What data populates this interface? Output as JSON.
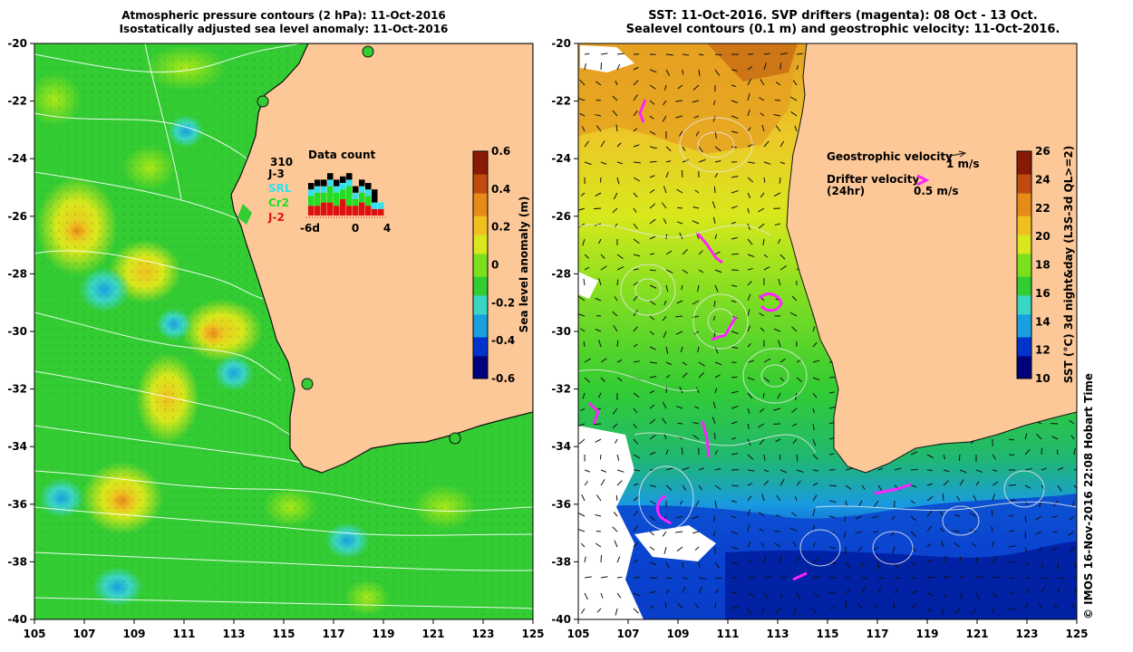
{
  "left_panel": {
    "title_line1": "Atmospheric pressure contours (2 hPa): 11-Oct-2016",
    "title_line2": "Isostatically adjusted sea level anomaly: 11-Oct-2016",
    "colorbar_label": "Sea level anomaly (m)",
    "colorbar_ticks": [
      "0.6",
      "0.4",
      "0.2",
      "0",
      "-0.2",
      "-0.4",
      "-0.6"
    ],
    "colorbar_colors": [
      "#00007a",
      "#0033cc",
      "#1aa0e0",
      "#3ad6c4",
      "#33cc33",
      "#7ae01e",
      "#d8e81c",
      "#f0c020",
      "#e68a1a",
      "#c04a10",
      "#8a1a08"
    ],
    "y_ticks": [
      "-20",
      "-22",
      "-24",
      "-26",
      "-28",
      "-30",
      "-32",
      "-34",
      "-36",
      "-38",
      "-40"
    ],
    "x_ticks": [
      "105",
      "107",
      "109",
      "111",
      "113",
      "115",
      "117",
      "119",
      "121",
      "123",
      "125"
    ],
    "inset": {
      "title": "Data count",
      "count": "310",
      "legend": [
        {
          "label": "J-3",
          "color": "#000000"
        },
        {
          "label": "SRL",
          "color": "#33e0f0"
        },
        {
          "label": "Cr2",
          "color": "#22dd22"
        },
        {
          "label": "J-2",
          "color": "#dd1111"
        }
      ],
      "x_labels": [
        "-6d",
        "0",
        "4"
      ],
      "bars": [
        [
          2,
          2,
          3,
          3
        ],
        [
          2,
          2,
          4,
          3
        ],
        [
          2,
          2,
          3,
          4
        ],
        [
          2,
          2,
          5,
          4
        ],
        [
          2,
          2,
          4,
          3
        ],
        [
          2,
          2,
          3,
          5
        ],
        [
          2,
          2,
          6,
          3
        ],
        [
          2,
          2,
          2,
          3
        ],
        [
          2,
          2,
          3,
          4
        ],
        [
          2,
          2,
          3,
          3
        ],
        [
          4,
          2,
          0,
          2
        ],
        [
          0,
          2,
          0,
          2
        ]
      ]
    }
  },
  "right_panel": {
    "title_line1": "SST: 11-Oct-2016. SVP drifters (magenta): 08 Oct - 13 Oct.",
    "title_line2": "Sealevel contours (0.1 m) and geostrophic velocity: 11-Oct-2016.",
    "colorbar_label": "SST (°C) 3d night&day (L3S-3d QL>=2)",
    "colorbar_ticks": [
      "26",
      "24",
      "22",
      "20",
      "18",
      "16",
      "14",
      "12",
      "10"
    ],
    "colorbar_colors": [
      "#00007a",
      "#0033cc",
      "#1aa0e0",
      "#3ad6c4",
      "#33cc33",
      "#7ae01e",
      "#d8e81c",
      "#f0c020",
      "#e68a1a",
      "#c04a10",
      "#8a1a08"
    ],
    "y_ticks": [
      "-20",
      "-22",
      "-24",
      "-26",
      "-28",
      "-30",
      "-32",
      "-34",
      "-36",
      "-38",
      "-40"
    ],
    "x_ticks": [
      "105",
      "107",
      "109",
      "111",
      "113",
      "115",
      "117",
      "119",
      "121",
      "123",
      "125"
    ],
    "geo_legend": "Geostrophic velocity",
    "geo_scale": "1 m/s",
    "drifter_legend": "Drifter velocity",
    "drifter_legend_sub": "(24hr)",
    "drifter_scale": "0.5 m/s"
  },
  "credit": "© IMOS 16-Nov-2016 22:08 Hobart Time"
}
